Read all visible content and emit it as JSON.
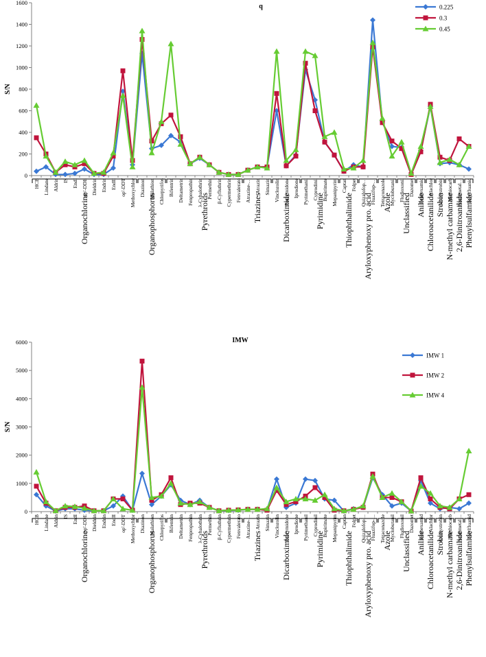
{
  "chart_data": [
    {
      "type": "line",
      "title": "q",
      "xlabel": "",
      "ylabel": "S/N",
      "ylim": [
        0,
        1600
      ],
      "yticks": [
        0,
        200,
        400,
        600,
        800,
        1000,
        1200,
        1400,
        1600
      ],
      "yticklabels": [
        "0",
        "200",
        "400",
        "600",
        "800",
        "1000",
        "1200",
        "1400",
        "1600"
      ],
      "categories": [
        "HCB",
        "Lindane",
        "Aldrin",
        "IS",
        "EndI",
        "pp'-DDE",
        "Dieldrin",
        "Endrin",
        "EndII",
        "op'-DDT",
        "Methoxychlor",
        "Diazinon",
        "Malathion",
        "Chlorpyrifos",
        "Bifentrin",
        "Deltametrin",
        "Fenpropathin",
        "λ-Cyhalothrin",
        "Permethin",
        "β-Cyfluthrin",
        "Cypermethrin",
        "Fenvalerato",
        "Atrazine-…",
        "Atrazin",
        "Simazin",
        "Vinclozolin",
        "Procymidone",
        "Iprodione",
        "Pyrimethanil",
        "Cyprodinil",
        "Bupirimate",
        "Mepanipyrim",
        "Captan",
        "Folpet",
        "Quizalofop…",
        "Fluazifop-…",
        "Tetraconazole",
        "Myclobutanil",
        "Fludioxonil",
        "Dazomet",
        "Fenhexamid",
        "Alachlor",
        "Azoxystrobin",
        "Methiocarb",
        "Pendimetal…",
        "Tolylfluanid"
      ],
      "series": [
        {
          "name": "0.225",
          "color": "#3a78d4",
          "marker": "diamond",
          "values": [
            40,
            80,
            10,
            10,
            20,
            60,
            10,
            10,
            70,
            780,
            100,
            1130,
            250,
            280,
            370,
            310,
            110,
            160,
            100,
            30,
            10,
            10,
            50,
            80,
            80,
            600,
            90,
            190,
            980,
            700,
            310,
            190,
            40,
            100,
            80,
            1440,
            500,
            270,
            260,
            10,
            230,
            640,
            110,
            120,
            100,
            60
          ]
        },
        {
          "name": "0.3",
          "color": "#c0143c",
          "marker": "square",
          "values": [
            350,
            200,
            30,
            100,
            80,
            110,
            20,
            20,
            180,
            970,
            140,
            1260,
            320,
            480,
            560,
            360,
            110,
            170,
            100,
            30,
            10,
            10,
            50,
            80,
            80,
            760,
            90,
            180,
            1040,
            600,
            310,
            190,
            40,
            80,
            80,
            1190,
            490,
            320,
            250,
            10,
            220,
            660,
            170,
            140,
            340,
            270
          ]
        },
        {
          "name": "0.45",
          "color": "#66cc33",
          "marker": "triangle",
          "values": [
            650,
            180,
            30,
            130,
            100,
            140,
            20,
            30,
            210,
            740,
            80,
            1340,
            210,
            500,
            1220,
            290,
            110,
            170,
            100,
            30,
            10,
            10,
            50,
            80,
            70,
            1150,
            140,
            240,
            1150,
            1110,
            360,
            400,
            60,
            70,
            140,
            1230,
            530,
            180,
            310,
            20,
            270,
            640,
            120,
            150,
            100,
            270
          ]
        }
      ],
      "groups": [
        {
          "label": "Organochlorine",
          "count": 11
        },
        {
          "label": "Organophosphorus",
          "count": 3
        },
        {
          "label": "Pyrethroids",
          "count": 8
        },
        {
          "label": "Triazines",
          "count": 3
        },
        {
          "label": "Dicarboximide",
          "count": 3
        },
        {
          "label": "Pyrimidine",
          "count": 4
        },
        {
          "label": "Thiophthalimide",
          "count": 2
        },
        {
          "label": "Aryloxyphenoxy pro. acid",
          "count": 2
        },
        {
          "label": "Azole",
          "count": 2
        },
        {
          "label": "Unclassified",
          "count": 2
        },
        {
          "label": "Anilide",
          "count": 1
        },
        {
          "label": "Chloroacetanilide",
          "count": 1
        },
        {
          "label": "Strobin",
          "count": 1
        },
        {
          "label": "N-methyl carbamate",
          "count": 1
        },
        {
          "label": "2,6-Dinitroanilide",
          "count": 1
        },
        {
          "label": "Phenylsulfamide",
          "count": 1
        }
      ],
      "legend": "top-right"
    },
    {
      "type": "line",
      "title": "IMW",
      "xlabel": "",
      "ylabel": "S/N",
      "ylim": [
        0,
        6000
      ],
      "yticks": [
        0,
        1000,
        2000,
        3000,
        4000,
        5000,
        6000
      ],
      "yticklabels": [
        "0",
        "1000",
        "2000",
        "3000",
        "4000",
        "5000",
        "6000"
      ],
      "categories": [
        "HCB",
        "Lindane",
        "Aldrin",
        "IS",
        "EndI",
        "pp'-DDE",
        "Dieldrin",
        "Endrin",
        "EndII",
        "op'-DDT",
        "Methoxychlor",
        "Diazinon",
        "Malathion",
        "Chlorpyrifos",
        "Bifentrin",
        "Deltametrin",
        "Fenpropathin",
        "λ-Cyhalothrin",
        "Permethin",
        "β-Cyfluthrin",
        "Cypermethrin",
        "Fenvalerato",
        "Atrazine-…",
        "Atrazin",
        "Simazin",
        "Vinclozolin",
        "Procymidone",
        "Iprodione",
        "Pyrimethanil",
        "Cyprodinil",
        "Bupirimate",
        "Mepanipyrim",
        "Captan",
        "Folpet",
        "Quizalofop…",
        "Fluazifop-…",
        "Tetraconazole",
        "Myclobutanil",
        "Fludioxonil",
        "Dazomet",
        "Fenhexamid",
        "Alachlor",
        "Azoxystrobin",
        "Methiocarb",
        "Pendimetal…",
        "Tolylfluanid"
      ],
      "series": [
        {
          "name": "IMW 1",
          "color": "#3a78d4",
          "marker": "diamond",
          "values": [
            600,
            200,
            20,
            100,
            100,
            50,
            30,
            30,
            200,
            550,
            50,
            1350,
            250,
            550,
            950,
            400,
            250,
            400,
            150,
            30,
            40,
            50,
            80,
            80,
            60,
            1150,
            150,
            300,
            1150,
            1100,
            450,
            400,
            20,
            100,
            150,
            1200,
            600,
            200,
            300,
            20,
            1100,
            300,
            100,
            150,
            100,
            300
          ]
        },
        {
          "name": "IMW 2",
          "color": "#c0143c",
          "marker": "square",
          "values": [
            900,
            300,
            30,
            150,
            150,
            200,
            30,
            30,
            450,
            450,
            50,
            5330,
            400,
            600,
            1200,
            250,
            300,
            300,
            150,
            30,
            50,
            60,
            80,
            80,
            50,
            750,
            250,
            350,
            550,
            850,
            500,
            50,
            30,
            80,
            150,
            1330,
            500,
            500,
            350,
            20,
            1200,
            450,
            150,
            100,
            450,
            600
          ]
        },
        {
          "name": "IMW 4",
          "color": "#66cc33",
          "marker": "triangle",
          "values": [
            1400,
            350,
            30,
            200,
            180,
            120,
            30,
            30,
            450,
            100,
            50,
            4400,
            500,
            550,
            1000,
            300,
            250,
            350,
            150,
            30,
            50,
            60,
            80,
            80,
            100,
            850,
            350,
            450,
            450,
            400,
            600,
            100,
            30,
            80,
            200,
            1250,
            500,
            650,
            350,
            20,
            900,
            650,
            200,
            150,
            450,
            2150
          ]
        }
      ],
      "groups": [
        {
          "label": "Organochlorine",
          "count": 11
        },
        {
          "label": "Organophosphorus",
          "count": 3
        },
        {
          "label": "Pyrethroids",
          "count": 8
        },
        {
          "label": "Triazines",
          "count": 3
        },
        {
          "label": "Dicarboximide",
          "count": 3
        },
        {
          "label": "Pyrimidine",
          "count": 4
        },
        {
          "label": "Thiophthalimide",
          "count": 2
        },
        {
          "label": "Aryloxyphenoxy pro. acid",
          "count": 2
        },
        {
          "label": "Azole",
          "count": 2
        },
        {
          "label": "Unclassified",
          "count": 2
        },
        {
          "label": "Anilide",
          "count": 1
        },
        {
          "label": "Chloroacetanilide",
          "count": 1
        },
        {
          "label": "Strobin",
          "count": 1
        },
        {
          "label": "N-methyl carbamate",
          "count": 1
        },
        {
          "label": "2,6-Dinitroanilide",
          "count": 1
        },
        {
          "label": "Phenylsulfamide",
          "count": 1
        }
      ],
      "legend": "right"
    }
  ]
}
